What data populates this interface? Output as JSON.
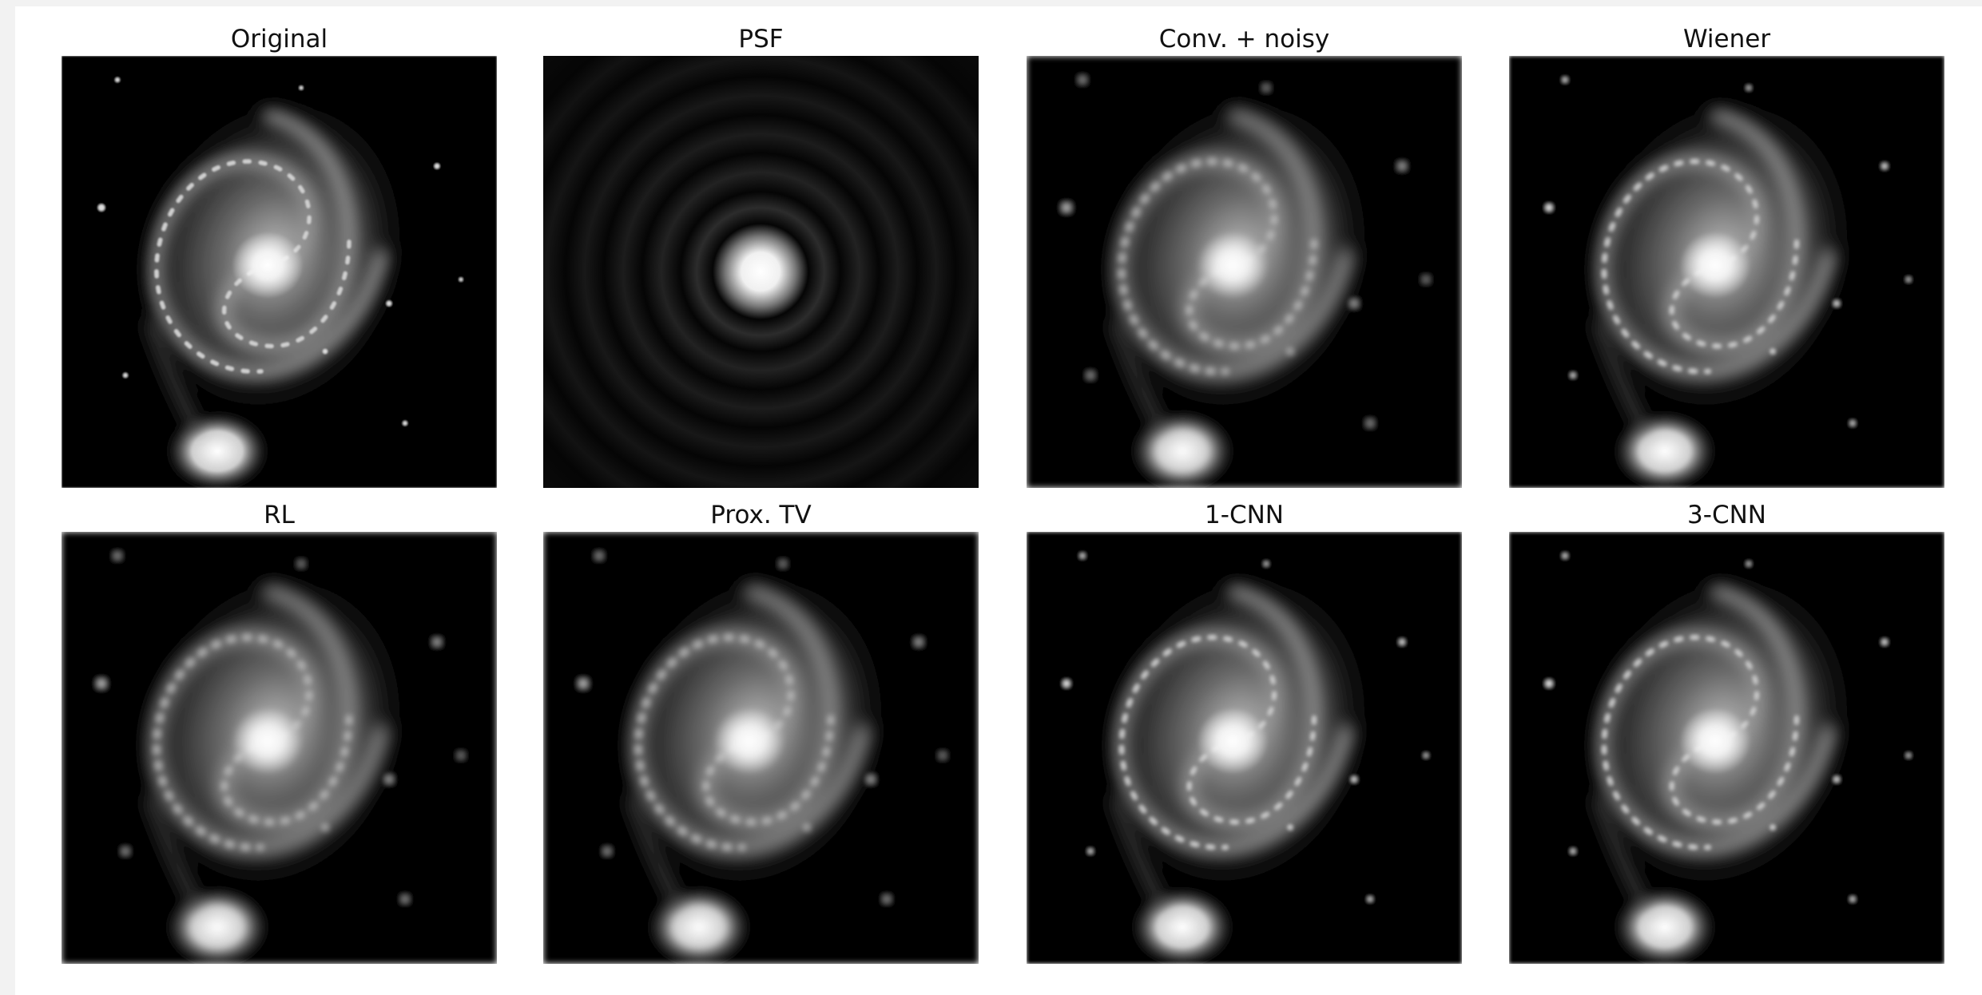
{
  "panels": [
    {
      "title": "Original"
    },
    {
      "title": "PSF"
    },
    {
      "title": "Conv. + noisy"
    },
    {
      "title": "Wiener"
    },
    {
      "title": "RL"
    },
    {
      "title": "Prox. TV"
    },
    {
      "title": "1-CNN"
    },
    {
      "title": "3-CNN"
    }
  ]
}
